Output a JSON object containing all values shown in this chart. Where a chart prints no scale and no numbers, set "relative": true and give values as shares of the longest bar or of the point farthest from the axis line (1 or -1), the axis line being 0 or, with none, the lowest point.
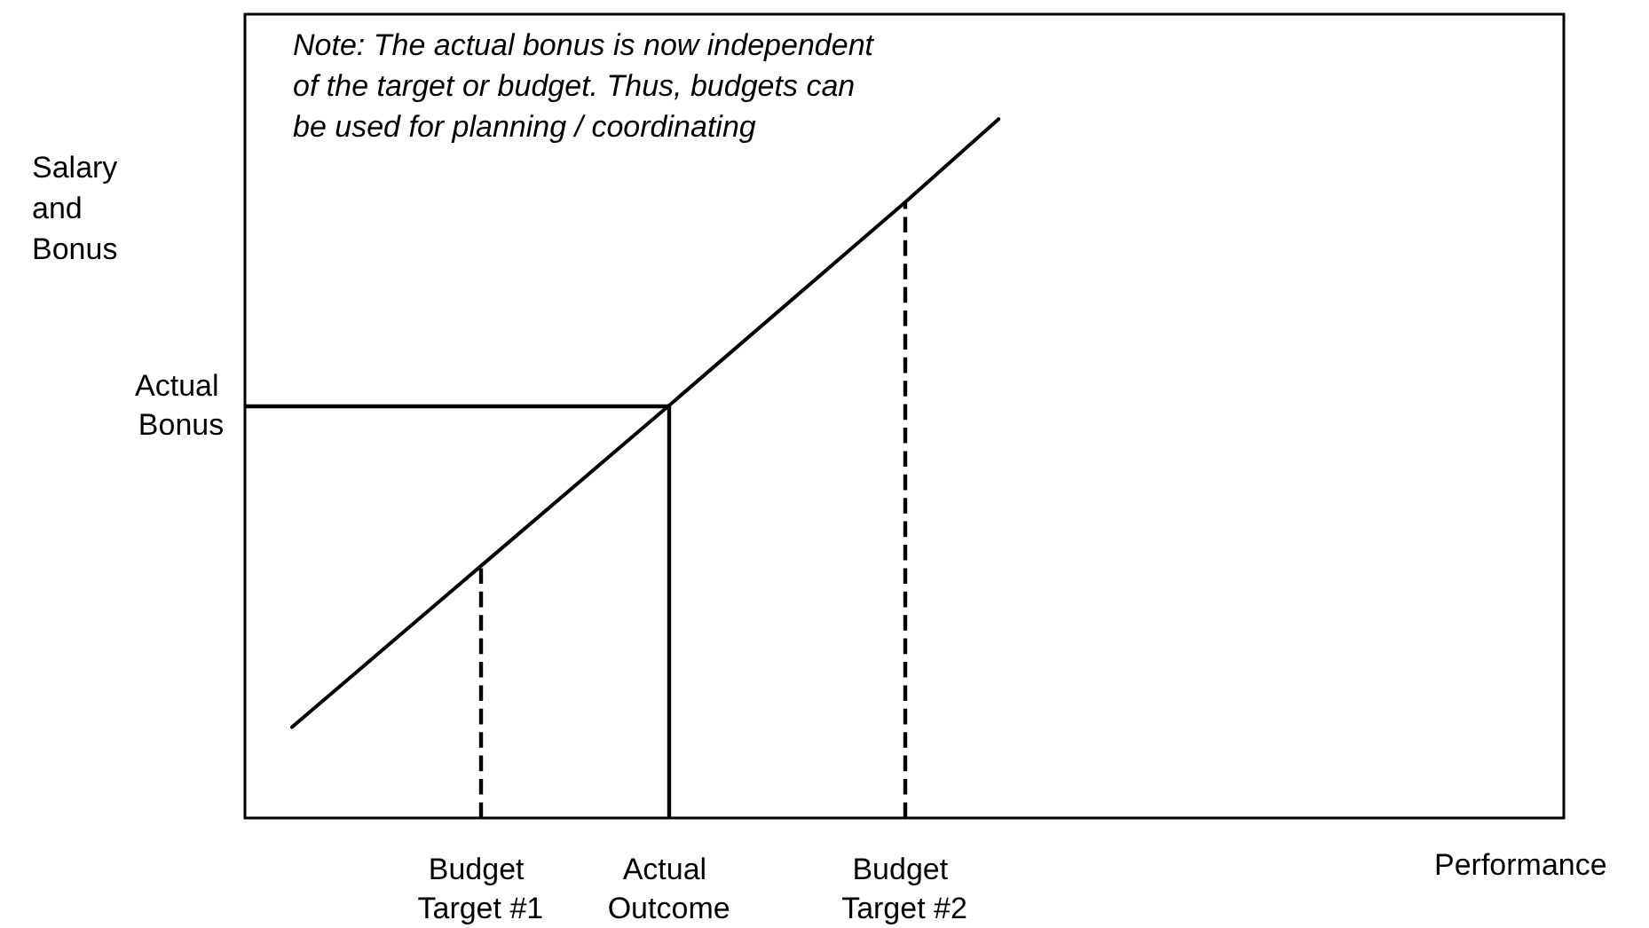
{
  "chart_data": {
    "type": "line",
    "relative": true,
    "ylabel": "Salary and Bonus",
    "xlabel": "Performance",
    "annotations": [
      "Note: The actual bonus is now independent of the target or budget. Thus, budgets can be used for planning / coordinating"
    ],
    "categories": [
      null,
      null,
      null,
      null,
      null,
      "Budget Target #1",
      null,
      null,
      null,
      "Actual Outcome",
      null,
      null,
      null,
      null,
      "Budget Target #2",
      null,
      null,
      null,
      null,
      null,
      null,
      null,
      null,
      null,
      null,
      null,
      null,
      null,
      null
    ],
    "series": [
      {
        "color": "#000000",
        "values": [
          null,
          0.13,
          null,
          null,
          null,
          0.36,
          null,
          null,
          null,
          0.59,
          null,
          null,
          null,
          null,
          0.88,
          null,
          1.0,
          null,
          null,
          null,
          null,
          null,
          null,
          null,
          null,
          null,
          null,
          null,
          null
        ]
      }
    ],
    "ref_lines": [
      {
        "axis": "x",
        "value": "Budget Target #1",
        "line_style": "dashed",
        "color": "#000000"
      },
      {
        "axis": "x",
        "value": "Actual Outcome",
        "line_style": "solid",
        "color": "#000000"
      },
      {
        "axis": "x",
        "value": "Budget Target #2",
        "line_style": "dashed",
        "color": "#000000"
      },
      {
        "axis": "y",
        "value": 0.59,
        "label": "Actual Bonus",
        "line_style": "solid",
        "color": "#000000"
      }
    ],
    "grid": false,
    "marker": "none",
    "line_style": "solid"
  }
}
